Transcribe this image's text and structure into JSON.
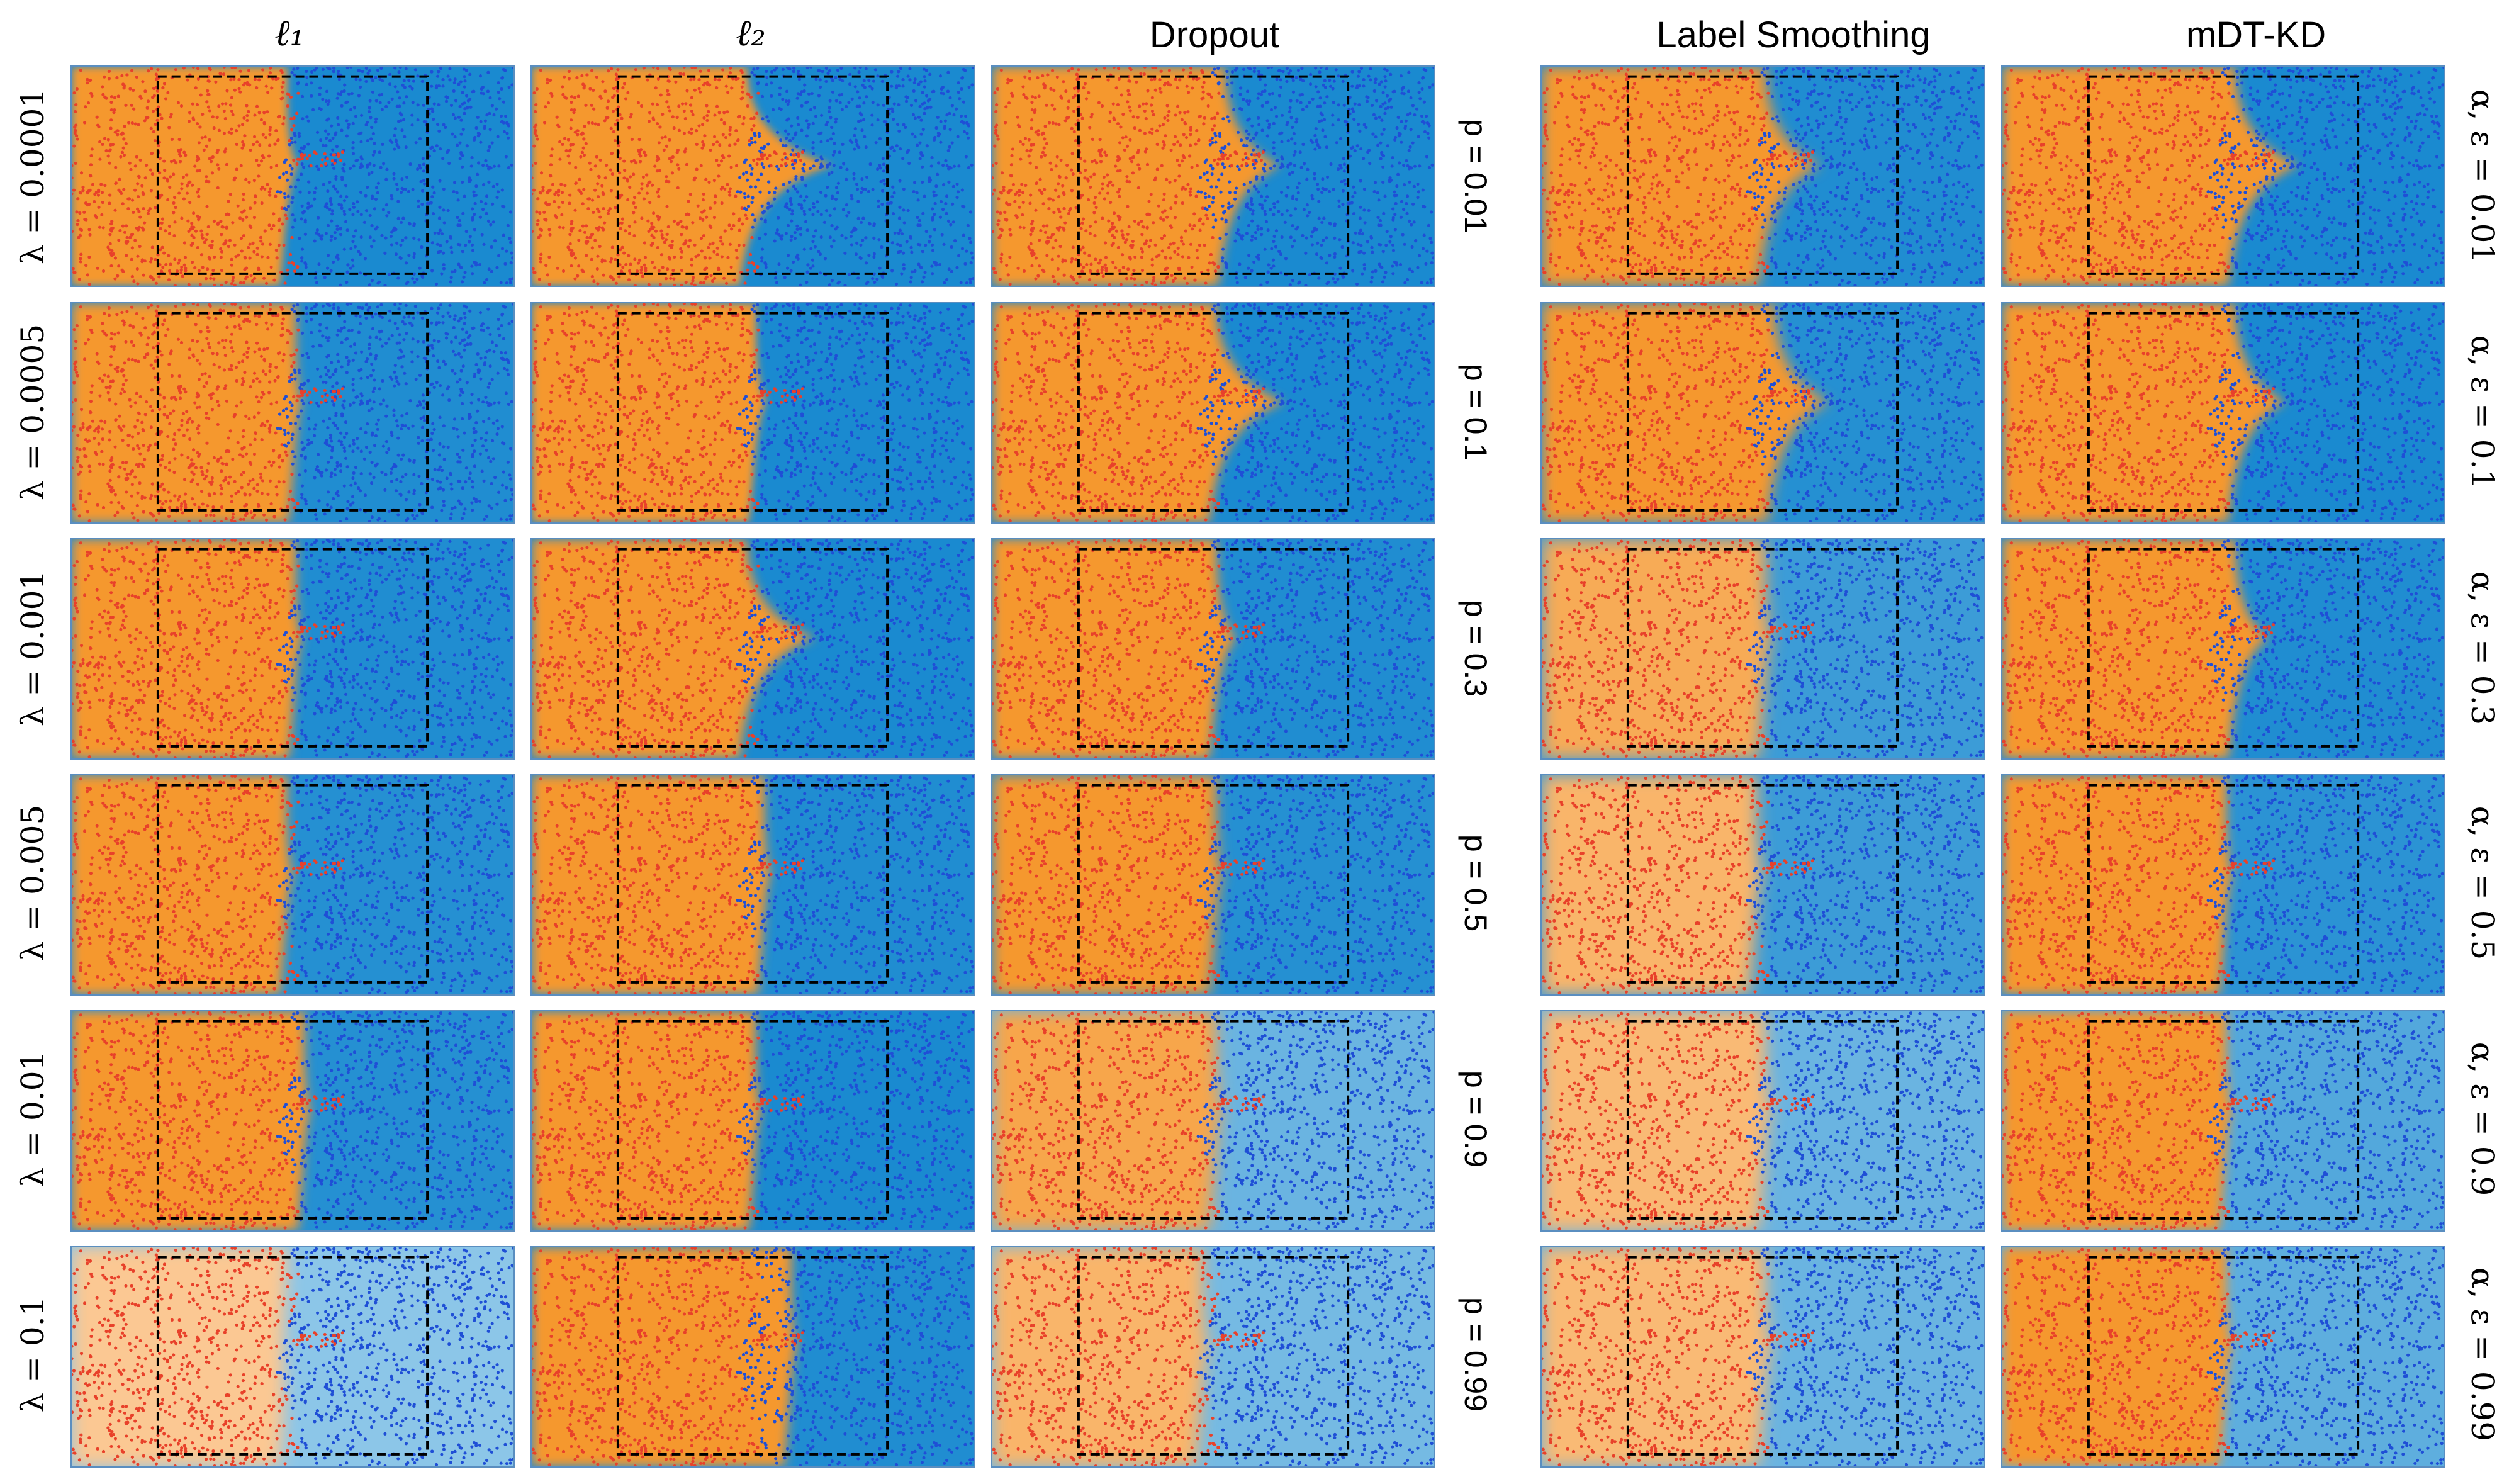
{
  "chart_data": {
    "type": "scatter",
    "column_titles": [
      "ℓ₁",
      "ℓ₂",
      "Dropout",
      "Label Smoothing",
      "mDT-KD"
    ],
    "left_row_labels": [
      "λ = 0.0001",
      "λ = 0.0005",
      "λ = 0.001",
      "λ = 0.005",
      "λ = 0.01",
      "λ = 0.1"
    ],
    "middle_row_labels": [
      "p = 0.01",
      "p = 0.1",
      "p = 0.3",
      "p = 0.5",
      "p = 0.9",
      "p = 0.99"
    ],
    "right_row_labels": [
      "α, ε = 0.01",
      "α, ε = 0.1",
      "α, ε = 0.3",
      "α, ε = 0.5",
      "α, ε = 0.9",
      "α, ε = 0.99"
    ],
    "colors": {
      "class_a_points": "#e8412a",
      "class_b_points": "#1f4fd6",
      "region_a_strong": "#f5982e",
      "region_a_weak": "#fbc893",
      "region_b_strong": "#1a8ad0",
      "region_b_weak": "#8cc6e8",
      "box": "#000000"
    },
    "grid": false,
    "dashed_box": true,
    "panels": [
      [
        {
          "boundary": 0.48,
          "spike": 0.03,
          "a_strength": 1.0,
          "b_strength": 1.0,
          "blur": 0.015
        },
        {
          "boundary": 0.48,
          "spike": 0.2,
          "a_strength": 1.0,
          "b_strength": 1.0,
          "blur": 0.015
        },
        {
          "boundary": 0.52,
          "spike": 0.13,
          "a_strength": 1.0,
          "b_strength": 1.0,
          "blur": 0.02
        },
        {
          "boundary": 0.5,
          "spike": 0.13,
          "a_strength": 1.0,
          "b_strength": 0.95,
          "blur": 0.025
        },
        {
          "boundary": 0.52,
          "spike": 0.15,
          "a_strength": 1.0,
          "b_strength": 1.0,
          "blur": 0.02
        }
      ],
      [
        {
          "boundary": 0.5,
          "spike": 0.02,
          "a_strength": 1.0,
          "b_strength": 0.95,
          "blur": 0.02
        },
        {
          "boundary": 0.5,
          "spike": 0.03,
          "a_strength": 1.0,
          "b_strength": 1.0,
          "blur": 0.015
        },
        {
          "boundary": 0.5,
          "spike": 0.16,
          "a_strength": 1.0,
          "b_strength": 1.0,
          "blur": 0.02
        },
        {
          "boundary": 0.52,
          "spike": 0.13,
          "a_strength": 1.0,
          "b_strength": 0.9,
          "blur": 0.025
        },
        {
          "boundary": 0.52,
          "spike": 0.12,
          "a_strength": 1.0,
          "b_strength": 1.0,
          "blur": 0.02
        }
      ],
      [
        {
          "boundary": 0.5,
          "spike": 0.02,
          "a_strength": 1.0,
          "b_strength": 0.95,
          "blur": 0.02
        },
        {
          "boundary": 0.48,
          "spike": 0.16,
          "a_strength": 1.0,
          "b_strength": 1.0,
          "blur": 0.02
        },
        {
          "boundary": 0.5,
          "spike": 0.05,
          "a_strength": 1.0,
          "b_strength": 0.95,
          "blur": 0.02
        },
        {
          "boundary": 0.5,
          "spike": 0.02,
          "a_strength": 0.6,
          "b_strength": 0.7,
          "blur": 0.03
        },
        {
          "boundary": 0.52,
          "spike": 0.08,
          "a_strength": 1.0,
          "b_strength": 0.95,
          "blur": 0.02
        }
      ],
      [
        {
          "boundary": 0.48,
          "spike": 0.02,
          "a_strength": 1.0,
          "b_strength": 0.9,
          "blur": 0.02
        },
        {
          "boundary": 0.52,
          "spike": 0.02,
          "a_strength": 1.0,
          "b_strength": 0.95,
          "blur": 0.02
        },
        {
          "boundary": 0.5,
          "spike": 0.02,
          "a_strength": 1.0,
          "b_strength": 0.9,
          "blur": 0.025
        },
        {
          "boundary": 0.48,
          "spike": 0.02,
          "a_strength": 0.4,
          "b_strength": 0.7,
          "blur": 0.03
        },
        {
          "boundary": 0.5,
          "spike": 0.02,
          "a_strength": 1.0,
          "b_strength": 0.85,
          "blur": 0.02
        }
      ],
      [
        {
          "boundary": 0.52,
          "spike": 0.02,
          "a_strength": 1.0,
          "b_strength": 0.9,
          "blur": 0.02
        },
        {
          "boundary": 0.5,
          "spike": 0.02,
          "a_strength": 1.0,
          "b_strength": 1.0,
          "blur": 0.02
        },
        {
          "boundary": 0.5,
          "spike": 0.02,
          "a_strength": 0.7,
          "b_strength": 0.3,
          "blur": 0.03
        },
        {
          "boundary": 0.5,
          "spike": 0.02,
          "a_strength": 0.3,
          "b_strength": 0.3,
          "blur": 0.03
        },
        {
          "boundary": 0.5,
          "spike": 0.02,
          "a_strength": 1.0,
          "b_strength": 0.5,
          "blur": 0.02
        }
      ],
      [
        {
          "boundary": 0.48,
          "spike": 0.0,
          "a_strength": 0.0,
          "b_strength": 0.0,
          "blur": 0.03
        },
        {
          "boundary": 0.58,
          "spike": 0.02,
          "a_strength": 1.0,
          "b_strength": 0.95,
          "blur": 0.02
        },
        {
          "boundary": 0.47,
          "spike": 0.02,
          "a_strength": 0.4,
          "b_strength": 0.2,
          "blur": 0.03
        },
        {
          "boundary": 0.5,
          "spike": 0.02,
          "a_strength": 0.3,
          "b_strength": 0.3,
          "blur": 0.03
        },
        {
          "boundary": 0.5,
          "spike": 0.02,
          "a_strength": 1.0,
          "b_strength": 0.4,
          "blur": 0.02
        }
      ]
    ]
  }
}
